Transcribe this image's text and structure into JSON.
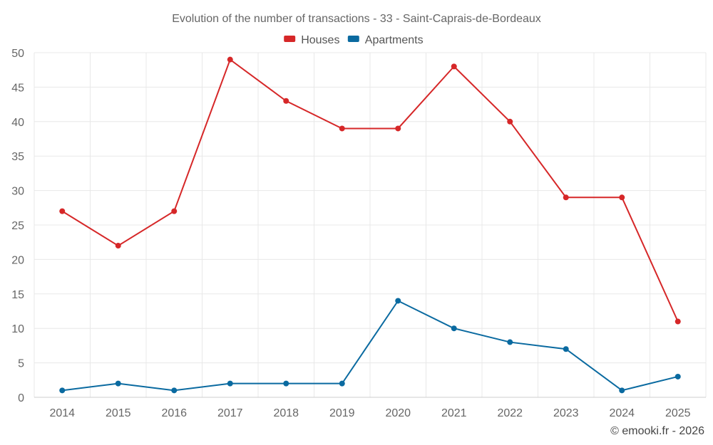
{
  "chart_data": {
    "type": "line",
    "title": "Evolution of the number of transactions - 33 - Saint-Caprais-de-Bordeaux",
    "categories": [
      "2014",
      "2015",
      "2016",
      "2017",
      "2018",
      "2019",
      "2020",
      "2021",
      "2022",
      "2023",
      "2024",
      "2025"
    ],
    "series": [
      {
        "name": "Houses",
        "color": "#d62728",
        "values": [
          27,
          22,
          27,
          49,
          43,
          39,
          39,
          48,
          40,
          29,
          29,
          11
        ]
      },
      {
        "name": "Apartments",
        "color": "#0a6aa0",
        "values": [
          1,
          2,
          1,
          2,
          2,
          2,
          14,
          10,
          8,
          7,
          1,
          3
        ]
      }
    ],
    "ylim": [
      0,
      50
    ],
    "yticks": [
      0,
      5,
      10,
      15,
      20,
      25,
      30,
      35,
      40,
      45,
      50
    ],
    "xlabel": "",
    "ylabel": "",
    "grid": true,
    "legend": "top-center"
  },
  "credit": "© emooki.fr - 2026"
}
